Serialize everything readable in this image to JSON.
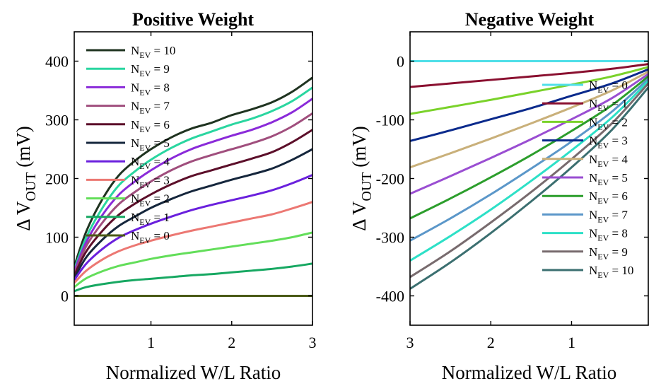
{
  "chart_data": [
    {
      "type": "line",
      "title": "Positive Weight",
      "xlabel": "Normalized W/L Ratio",
      "ylabel": "ΔV_OUT (mV)",
      "ylabel_parts": {
        "delta": "Δ",
        "main": "V",
        "sub": "OUT",
        "unit": "(mV)"
      },
      "xlim": [
        0.05,
        3
      ],
      "ylim": [
        -50,
        450
      ],
      "xticks": [
        1,
        2,
        3
      ],
      "yticks": [
        0,
        100,
        200,
        300,
        400
      ],
      "x": [
        0.05,
        0.2,
        0.4,
        0.6,
        0.8,
        1.0,
        1.25,
        1.5,
        1.75,
        2.0,
        2.25,
        2.5,
        2.75,
        3.0
      ],
      "legend_position": "upper-left",
      "series": [
        {
          "name": "N_EV = 10",
          "label_main": "N",
          "label_sub": "EV",
          "label_rest": " = 10",
          "color": "#1f3320",
          "values": [
            50,
            110,
            165,
            205,
            230,
            250,
            270,
            285,
            295,
            308,
            318,
            330,
            348,
            372
          ]
        },
        {
          "name": "N_EV = 9",
          "label_main": "N",
          "label_sub": "EV",
          "label_rest": " = 9",
          "color": "#2ad6a0",
          "values": [
            45,
            100,
            150,
            188,
            212,
            232,
            252,
            268,
            280,
            292,
            302,
            315,
            332,
            355
          ]
        },
        {
          "name": "N_EV = 8",
          "label_main": "N",
          "label_sub": "EV",
          "label_rest": " = 8",
          "color": "#8a2ad9",
          "values": [
            42,
            92,
            138,
            172,
            195,
            214,
            234,
            250,
            262,
            273,
            283,
            296,
            313,
            336
          ]
        },
        {
          "name": "N_EV = 7",
          "label_main": "N",
          "label_sub": "EV",
          "label_rest": " = 7",
          "color": "#a04e7d",
          "values": [
            38,
            85,
            125,
            156,
            177,
            195,
            214,
            229,
            240,
            250,
            260,
            272,
            289,
            311
          ]
        },
        {
          "name": "N_EV = 6",
          "label_main": "N",
          "label_sub": "EV",
          "label_rest": " = 6",
          "color": "#5c0f2a",
          "values": [
            35,
            76,
            111,
            138,
            157,
            173,
            190,
            204,
            214,
            224,
            234,
            245,
            262,
            283
          ]
        },
        {
          "name": "N_EV = 5",
          "label_main": "N",
          "label_sub": "EV",
          "label_rest": " = 5",
          "color": "#15263c",
          "values": [
            30,
            66,
            96,
            119,
            135,
            150,
            165,
            178,
            188,
            198,
            207,
            217,
            232,
            250
          ]
        },
        {
          "name": "N_EV = 4",
          "label_main": "N",
          "label_sub": "EV",
          "label_rest": " = 4",
          "color": "#6a20dd",
          "values": [
            27,
            55,
            80,
            99,
            112,
            123,
            135,
            146,
            155,
            163,
            171,
            180,
            192,
            206
          ]
        },
        {
          "name": "N_EV = 3",
          "label_main": "N",
          "label_sub": "EV",
          "label_rest": " = 3",
          "color": "#ec7873",
          "values": [
            22,
            43,
            62,
            76,
            86,
            94,
            103,
            111,
            118,
            125,
            132,
            139,
            149,
            160
          ]
        },
        {
          "name": "N_EV = 2",
          "label_main": "N",
          "label_sub": "EV",
          "label_rest": " = 2",
          "color": "#63de5a",
          "values": [
            15,
            30,
            42,
            51,
            57,
            63,
            69,
            74,
            79,
            84,
            89,
            94,
            100,
            108
          ]
        },
        {
          "name": "N_EV = 1",
          "label_main": "N",
          "label_sub": "EV",
          "label_rest": " = 1",
          "color": "#17a862",
          "values": [
            8,
            15,
            20,
            24,
            27,
            29,
            32,
            35,
            37,
            40,
            43,
            46,
            50,
            55
          ]
        },
        {
          "name": "N_EV = 0",
          "label_main": "N",
          "label_sub": "EV",
          "label_rest": " = 0",
          "color": "#4a5a16",
          "values": [
            0,
            0,
            0,
            0,
            0,
            0,
            0,
            0,
            0,
            0,
            0,
            0,
            0,
            0
          ]
        }
      ]
    },
    {
      "type": "line",
      "title": "Negative Weight",
      "xlabel": "Normalized W/L Ratio",
      "ylabel": "ΔV_OUT (mV)",
      "ylabel_parts": {
        "delta": "Δ",
        "main": "V",
        "sub": "OUT",
        "unit": "(mV)"
      },
      "xlim": [
        3,
        0.05
      ],
      "ylim": [
        -450,
        50
      ],
      "xticks": [
        3,
        2,
        1
      ],
      "yticks": [
        0,
        -100,
        -200,
        -300,
        -400
      ],
      "x": [
        3.0,
        2.5,
        2.0,
        1.5,
        1.0,
        0.5,
        0.05
      ],
      "legend_position": "right",
      "series": [
        {
          "name": "N_EV = 0",
          "label_main": "N",
          "label_sub": "EV",
          "label_rest": " = 0",
          "color": "#4fdfe8",
          "values": [
            0,
            0,
            0,
            0,
            0,
            0,
            0
          ]
        },
        {
          "name": "N_EV = 1",
          "label_main": "N",
          "label_sub": "EV",
          "label_rest": " = 1",
          "color": "#8a1030",
          "values": [
            -44,
            -38,
            -32,
            -26,
            -20,
            -13,
            -5
          ]
        },
        {
          "name": "N_EV = 2",
          "label_main": "N",
          "label_sub": "EV",
          "label_rest": " = 2",
          "color": "#7ad22a",
          "values": [
            -90,
            -78,
            -66,
            -53,
            -40,
            -26,
            -10
          ]
        },
        {
          "name": "N_EV = 3",
          "label_main": "N",
          "label_sub": "EV",
          "label_rest": " = 3",
          "color": "#0a2a8c",
          "values": [
            -136,
            -118,
            -99,
            -80,
            -59,
            -38,
            -14
          ]
        },
        {
          "name": "N_EV = 4",
          "label_main": "N",
          "label_sub": "EV",
          "label_rest": " = 4",
          "color": "#c9b07a",
          "values": [
            -181,
            -157,
            -132,
            -106,
            -79,
            -50,
            -18
          ]
        },
        {
          "name": "N_EV = 5",
          "label_main": "N",
          "label_sub": "EV",
          "label_rest": " = 5",
          "color": "#9a4ed2",
          "values": [
            -226,
            -196,
            -165,
            -133,
            -99,
            -63,
            -22
          ]
        },
        {
          "name": "N_EV = 6",
          "label_main": "N",
          "label_sub": "EV",
          "label_rest": " = 6",
          "color": "#2c9e2c",
          "values": [
            -268,
            -234,
            -198,
            -160,
            -119,
            -75,
            -26
          ]
        },
        {
          "name": "N_EV = 7",
          "label_main": "N",
          "label_sub": "EV",
          "label_rest": " = 7",
          "color": "#5b97c9",
          "values": [
            -306,
            -268,
            -227,
            -183,
            -137,
            -86,
            -30
          ]
        },
        {
          "name": "N_EV = 8",
          "label_main": "N",
          "label_sub": "EV",
          "label_rest": " = 8",
          "color": "#2de0c7",
          "values": [
            -340,
            -298,
            -253,
            -204,
            -152,
            -96,
            -34
          ]
        },
        {
          "name": "N_EV = 9",
          "label_main": "N",
          "label_sub": "EV",
          "label_rest": " = 9",
          "color": "#786b6e",
          "values": [
            -368,
            -324,
            -275,
            -223,
            -167,
            -106,
            -38
          ]
        },
        {
          "name": "N_EV = 10",
          "label_main": "N",
          "label_sub": "EV",
          "label_rest": " = 10",
          "color": "#3b6f70",
          "values": [
            -388,
            -343,
            -293,
            -239,
            -181,
            -117,
            -45
          ]
        }
      ]
    }
  ]
}
